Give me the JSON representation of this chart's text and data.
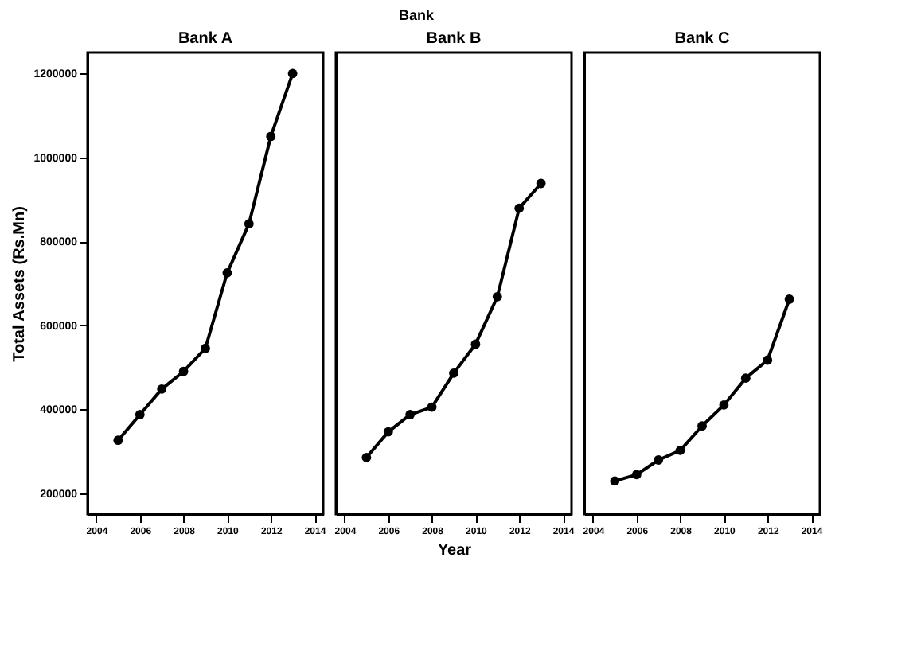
{
  "chart_data": [
    {
      "type": "line",
      "title": "Bank A",
      "ylabel": "Total Assets (Rs.Mn)",
      "x": [
        2005,
        2006,
        2007,
        2008,
        2009,
        2010,
        2011,
        2012,
        2013
      ],
      "series": [
        {
          "color": "#000000",
          "values": [
            326000,
            387000,
            448000,
            490000,
            545000,
            725000,
            842000,
            1050000,
            1200000
          ]
        }
      ],
      "xlim": [
        2003.6,
        2014.4
      ],
      "xticks": [
        2004,
        2006,
        2008,
        2010,
        2012,
        2014
      ],
      "ylim": [
        150000,
        1250000
      ],
      "yticks": [
        200000,
        400000,
        600000,
        800000,
        1000000,
        1200000
      ],
      "grid": false,
      "marker": "circle",
      "line_style": "solid"
    },
    {
      "type": "line",
      "title": "Bank B",
      "xlabel": "Year",
      "annotations": [
        "Bank"
      ],
      "x": [
        2005,
        2006,
        2007,
        2008,
        2009,
        2010,
        2011,
        2012,
        2013
      ],
      "series": [
        {
          "color": "#000000",
          "values": [
            285000,
            346000,
            387000,
            405000,
            486000,
            555000,
            668000,
            879000,
            938000
          ]
        }
      ],
      "xlim": [
        2003.6,
        2014.4
      ],
      "xticks": [
        2004,
        2006,
        2008,
        2010,
        2012,
        2014
      ],
      "ylim": [
        150000,
        1250000
      ],
      "tick_labels": "x",
      "grid": false,
      "marker": "circle",
      "line_style": "solid"
    },
    {
      "type": "line",
      "title": "Bank C",
      "x": [
        2005,
        2006,
        2007,
        2008,
        2009,
        2010,
        2011,
        2012,
        2013
      ],
      "series": [
        {
          "color": "#000000",
          "values": [
            229000,
            244000,
            279000,
            302000,
            360000,
            410000,
            474000,
            517000,
            662000
          ]
        }
      ],
      "xlim": [
        2003.6,
        2014.4
      ],
      "xticks": [
        2004,
        2006,
        2008,
        2010,
        2012,
        2014
      ],
      "ylim": [
        150000,
        1250000
      ],
      "tick_labels": "x",
      "grid": false,
      "marker": "circle",
      "line_style": "solid"
    }
  ]
}
